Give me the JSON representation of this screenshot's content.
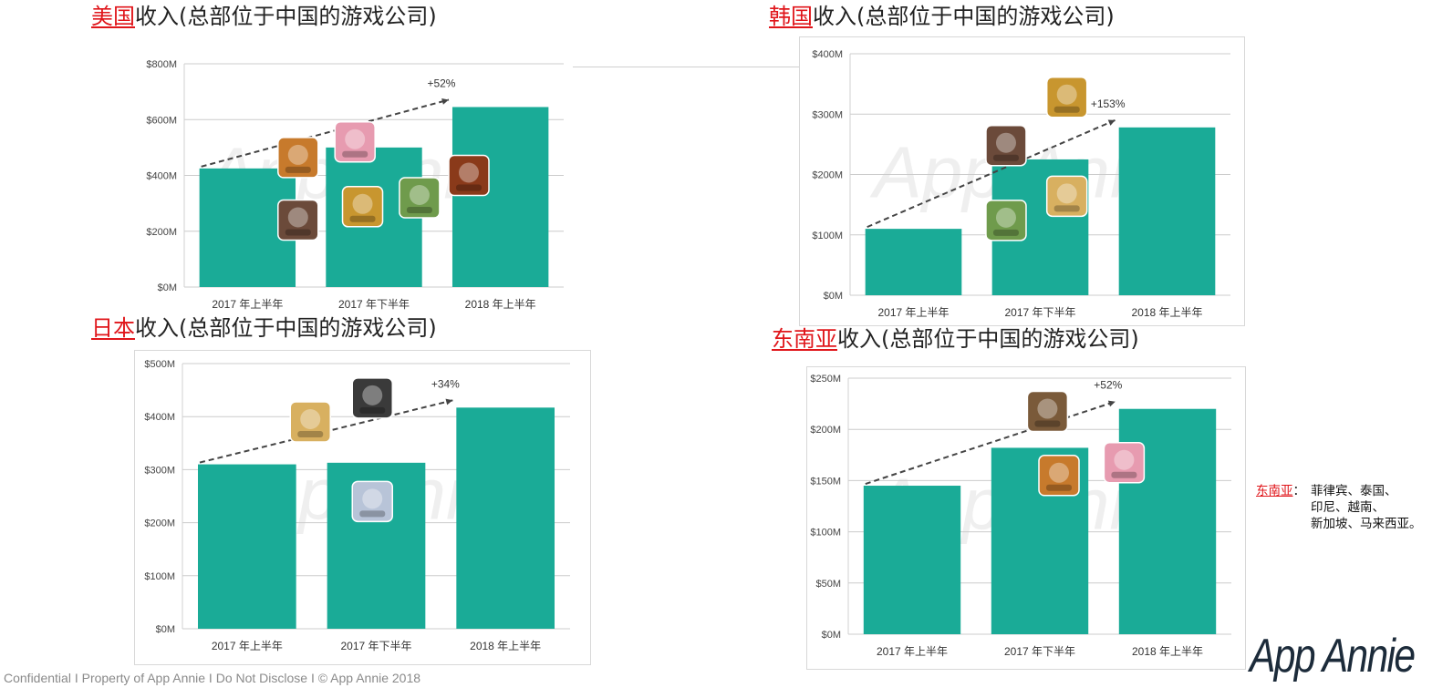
{
  "title_suffix": "收入(总部位于中国的游戏公司)",
  "footer": "Confidential  I  Property of App Annie  I  Do Not Disclose  I  © App Annie 2018",
  "logo_text": "App Annie",
  "watermark": "App Annie",
  "note": {
    "region": "东南亚",
    "separator": "：",
    "lines": [
      "菲律宾、泰国、",
      "印尼、越南、",
      "新加坡、马来西亚。"
    ]
  },
  "colors": {
    "bar": "#1aab97",
    "accent": "#e0161b",
    "grid": "#cccccc",
    "trend": "#444444"
  },
  "chart_data": [
    {
      "type": "bar",
      "region": "美国",
      "categories": [
        "2017 年上半年",
        "2017 年下半年",
        "2018 年上半年"
      ],
      "values": [
        425,
        500,
        645
      ],
      "yticks": [
        "$0M",
        "$200M",
        "$400M",
        "$600M",
        "$800M"
      ],
      "ylim": [
        0,
        800
      ],
      "annotation": "+52%",
      "icons": [
        "game-icon-warrior",
        "game-icon-anime-girl",
        "game-icon-lion-king",
        "game-icon-cowboy",
        "game-icon-castle-king",
        "game-icon-army-men"
      ]
    },
    {
      "type": "bar",
      "region": "韩国",
      "categories": [
        "2017 年上半年",
        "2017 年下半年",
        "2018 年上半年"
      ],
      "values": [
        110,
        225,
        278
      ],
      "yticks": [
        "$0M",
        "$100M",
        "$200M",
        "$300M",
        "$400M"
      ],
      "ylim": [
        0,
        400
      ],
      "annotation": "+153%",
      "icons": [
        "game-icon-blonde-girl",
        "game-icon-three-kingdoms",
        "game-icon-silver-hair",
        "game-icon-warlord"
      ]
    },
    {
      "type": "bar",
      "region": "日本",
      "categories": [
        "2017 年上半年",
        "2017 年下半年",
        "2018 年上半年"
      ],
      "values": [
        310,
        313,
        417
      ],
      "yticks": [
        "$0M",
        "$100M",
        "$200M",
        "$300M",
        "$400M",
        "$500M"
      ],
      "ylim": [
        0,
        500
      ],
      "annotation": "+34%",
      "icons": [
        "game-icon-soldiers",
        "game-icon-calligraphy",
        "game-icon-pink-hair"
      ]
    },
    {
      "type": "bar",
      "region": "东南亚",
      "categories": [
        "2017 年上半年",
        "2017 年下半年",
        "2018 年上半年"
      ],
      "values": [
        145,
        182,
        220
      ],
      "yticks": [
        "$0M",
        "$50M",
        "$100M",
        "$150M",
        "$200M",
        "$250M"
      ],
      "ylim": [
        0,
        250
      ],
      "annotation": "+52%",
      "icons": [
        "game-icon-moba-hero",
        "game-icon-blade-soul",
        "game-icon-blue-hair"
      ]
    }
  ]
}
